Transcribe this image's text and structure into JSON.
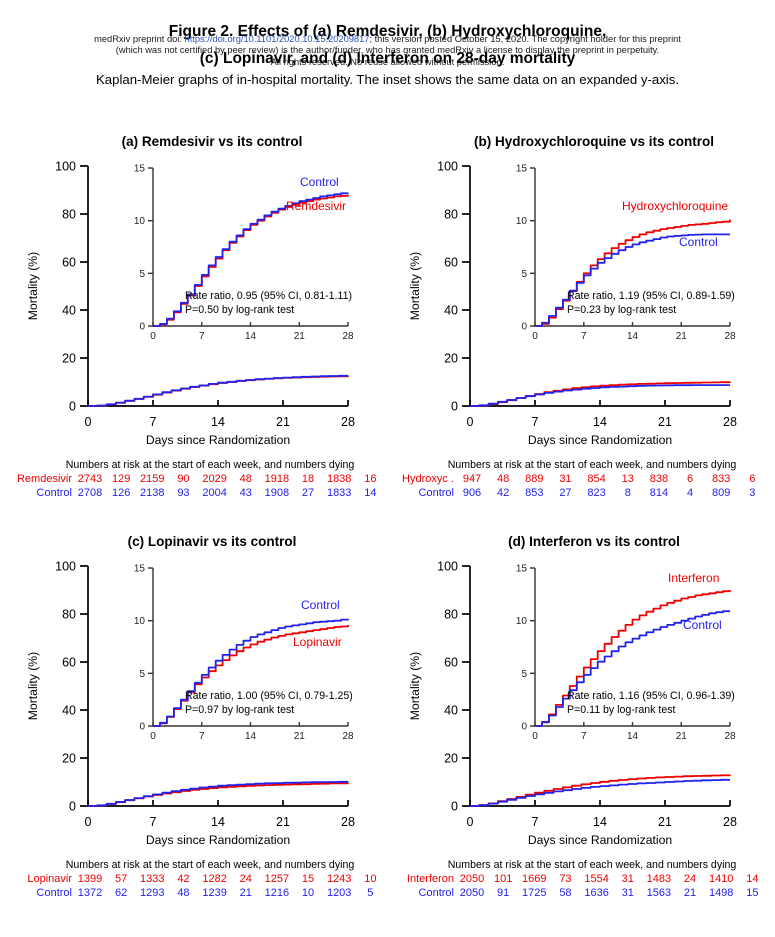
{
  "figure": {
    "title_line1": "Figure 2. Effects of (a) Remdesivir, (b) Hydroxychloroquine,",
    "title_line2": "(c) Lopinavir, and (d) Interferon on 28-day mortality",
    "subtitle": "Kaplan-Meier graphs of in-hospital mortality. The inset shows the same data on an expanded y-axis."
  },
  "watermark": {
    "line1_prefix": "medRxiv preprint doi: ",
    "doi_link": "https://doi.org/10.1101/2020.10.15.20209817",
    "line1_suffix": "; this version posted October 15, 2020. The copyright holder for this preprint",
    "line2": "(which was not certified by peer review) is the author/funder, who has granted medRxiv a license to display the preprint in perpetuity.",
    "line3": "All rights reserved. No reuse allowed without permission."
  },
  "colors": {
    "treatment": "#ee0000",
    "control": "#2222ee",
    "link": "#2a52be",
    "axis": "#000000",
    "inset_axis": "#333333"
  },
  "axes": {
    "main": {
      "ylabel": "Mortality (%)",
      "xlabel": "Days since Randomization",
      "yticks": [
        0,
        20,
        40,
        60,
        80,
        100
      ],
      "xticks": [
        0,
        7,
        14,
        21,
        28
      ],
      "ylim": [
        0,
        100
      ],
      "xlim": [
        0,
        28
      ]
    },
    "inset": {
      "yticks": [
        0,
        5,
        10,
        15
      ],
      "xticks": [
        0,
        7,
        14,
        21,
        28
      ],
      "ylim": [
        0,
        15
      ],
      "xlim": [
        0,
        28
      ]
    }
  },
  "risk_table_header": "Numbers at risk at the start of each week, and numbers dying",
  "chart_data": [
    {
      "type": "line",
      "subtype": "kaplan-meier-step",
      "title": "(a) Remdesivir vs its control",
      "treatment_label": "Remdesivir",
      "control_label": "Control",
      "annotation_line1": "Rate ratio, 0.95 (95% CI, 0.81-1.11)",
      "annotation_line2": "P=0.50 by log-rank test",
      "x_unit": "days since randomization, daily values day 0-28",
      "series": [
        {
          "name": "Remdesivir",
          "role": "treatment",
          "mortality_pct": [
            0,
            0.15,
            0.6,
            1.3,
            2.1,
            2.9,
            3.8,
            4.7,
            5.6,
            6.4,
            7.2,
            7.9,
            8.5,
            9.1,
            9.6,
            10,
            10.4,
            10.75,
            11.05,
            11.3,
            11.5,
            11.7,
            11.85,
            12,
            12.1,
            12.2,
            12.3,
            12.35,
            12.45
          ]
        },
        {
          "name": "Control",
          "role": "control",
          "mortality_pct": [
            0,
            0.2,
            0.7,
            1.4,
            2.2,
            3,
            3.9,
            4.85,
            5.75,
            6.55,
            7.3,
            8,
            8.6,
            9.2,
            9.7,
            10.1,
            10.5,
            10.85,
            11.15,
            11.4,
            11.65,
            11.85,
            12,
            12.15,
            12.3,
            12.4,
            12.5,
            12.6,
            12.65
          ]
        }
      ],
      "risk_table": [
        {
          "label": "Remdesivir",
          "role": "treatment",
          "values": [
            2743,
            129,
            2159,
            90,
            2029,
            48,
            1918,
            18,
            1838,
            16
          ]
        },
        {
          "label": "Control",
          "role": "control",
          "values": [
            2708,
            126,
            2138,
            93,
            2004,
            43,
            1908,
            27,
            1833,
            14
          ]
        }
      ]
    },
    {
      "type": "line",
      "subtype": "kaplan-meier-step",
      "title": "(b) Hydroxychloroquine vs its control",
      "treatment_label": "Hydroxychloroquine",
      "control_label": "Control",
      "annotation_line1": "Rate ratio, 1.19 (95% CI, 0.89-1.59)",
      "annotation_line2": "P=0.23 by log-rank test",
      "x_unit": "days since randomization, daily values day 0-28",
      "series": [
        {
          "name": "Hydroxychloroquine",
          "role": "treatment",
          "mortality_pct": [
            0,
            0.2,
            0.8,
            1.6,
            2.4,
            3.3,
            4.2,
            5,
            5.75,
            6.35,
            6.9,
            7.4,
            7.8,
            8.15,
            8.45,
            8.7,
            8.9,
            9.05,
            9.2,
            9.3,
            9.4,
            9.5,
            9.6,
            9.65,
            9.7,
            9.78,
            9.85,
            9.9,
            10.1
          ]
        },
        {
          "name": "Control",
          "role": "control",
          "mortality_pct": [
            0,
            0.3,
            0.95,
            1.75,
            2.5,
            3.35,
            4.1,
            4.8,
            5.45,
            6,
            6.45,
            6.85,
            7.2,
            7.5,
            7.75,
            7.95,
            8.1,
            8.25,
            8.4,
            8.5,
            8.55,
            8.6,
            8.65,
            8.68,
            8.7,
            8.7,
            8.7,
            8.7,
            8.7
          ]
        }
      ],
      "risk_table": [
        {
          "label": "Hydroxyc .",
          "role": "treatment",
          "values": [
            947,
            48,
            889,
            31,
            854,
            13,
            838,
            6,
            833,
            6
          ]
        },
        {
          "label": "Control",
          "role": "control",
          "values": [
            906,
            42,
            853,
            27,
            823,
            8,
            814,
            4,
            809,
            3
          ]
        }
      ]
    },
    {
      "type": "line",
      "subtype": "kaplan-meier-step",
      "title": "(c) Lopinavir vs its control",
      "treatment_label": "Lopinavir",
      "control_label": "Control",
      "annotation_line1": "Rate ratio, 1.00 (95% CI, 0.79-1.25)",
      "annotation_line2": "P=0.97 by log-rank test",
      "x_unit": "days since randomization, daily values day 0-28",
      "series": [
        {
          "name": "Lopinavir",
          "role": "treatment",
          "mortality_pct": [
            0,
            0.25,
            0.85,
            1.6,
            2.4,
            3.2,
            3.95,
            4.6,
            5.2,
            5.75,
            6.25,
            6.7,
            7.1,
            7.45,
            7.75,
            8,
            8.2,
            8.4,
            8.55,
            8.7,
            8.8,
            8.9,
            9,
            9.1,
            9.2,
            9.3,
            9.4,
            9.45,
            9.6
          ]
        },
        {
          "name": "Control",
          "role": "control",
          "mortality_pct": [
            0,
            0.3,
            0.9,
            1.7,
            2.5,
            3.3,
            4.1,
            4.85,
            5.55,
            6.2,
            6.75,
            7.25,
            7.7,
            8.1,
            8.45,
            8.7,
            8.9,
            9.1,
            9.3,
            9.45,
            9.55,
            9.65,
            9.75,
            9.85,
            9.9,
            9.95,
            10,
            10.1,
            10.2
          ]
        }
      ],
      "risk_table": [
        {
          "label": "Lopinavir",
          "role": "treatment",
          "values": [
            1399,
            57,
            1333,
            42,
            1282,
            24,
            1257,
            15,
            1243,
            10
          ]
        },
        {
          "label": "Control",
          "role": "control",
          "values": [
            1372,
            62,
            1293,
            48,
            1239,
            21,
            1216,
            10,
            1203,
            5
          ]
        }
      ]
    },
    {
      "type": "line",
      "subtype": "kaplan-meier-step",
      "title": "(d) Interferon vs its control",
      "treatment_label": "Interferon",
      "control_label": "Control",
      "annotation_line1": "Rate ratio, 1.16 (95% CI, 0.96-1.39)",
      "annotation_line2": "P=0.11 by log-rank test",
      "x_unit": "days since randomization, daily values day 0-28",
      "series": [
        {
          "name": "Interferon",
          "role": "treatment",
          "mortality_pct": [
            0,
            0.4,
            1.1,
            2,
            2.9,
            3.8,
            4.7,
            5.55,
            6.35,
            7.1,
            7.8,
            8.45,
            9.05,
            9.6,
            10.1,
            10.5,
            10.85,
            11.15,
            11.45,
            11.7,
            11.9,
            12.1,
            12.25,
            12.4,
            12.5,
            12.6,
            12.7,
            12.8,
            12.9
          ]
        },
        {
          "name": "Control",
          "role": "control",
          "mortality_pct": [
            0,
            0.35,
            1,
            1.8,
            2.6,
            3.4,
            4.15,
            4.85,
            5.5,
            6.1,
            6.6,
            7.1,
            7.55,
            7.95,
            8.3,
            8.6,
            8.9,
            9.15,
            9.4,
            9.6,
            9.8,
            10,
            10.2,
            10.4,
            10.55,
            10.7,
            10.8,
            10.9,
            10.9
          ]
        }
      ],
      "risk_table": [
        {
          "label": "Interferon",
          "role": "treatment",
          "values": [
            2050,
            101,
            1669,
            73,
            1554,
            31,
            1483,
            24,
            1410,
            14
          ]
        },
        {
          "label": "Control",
          "role": "control",
          "values": [
            2050,
            91,
            1725,
            58,
            1636,
            31,
            1563,
            21,
            1498,
            15
          ]
        }
      ]
    }
  ]
}
